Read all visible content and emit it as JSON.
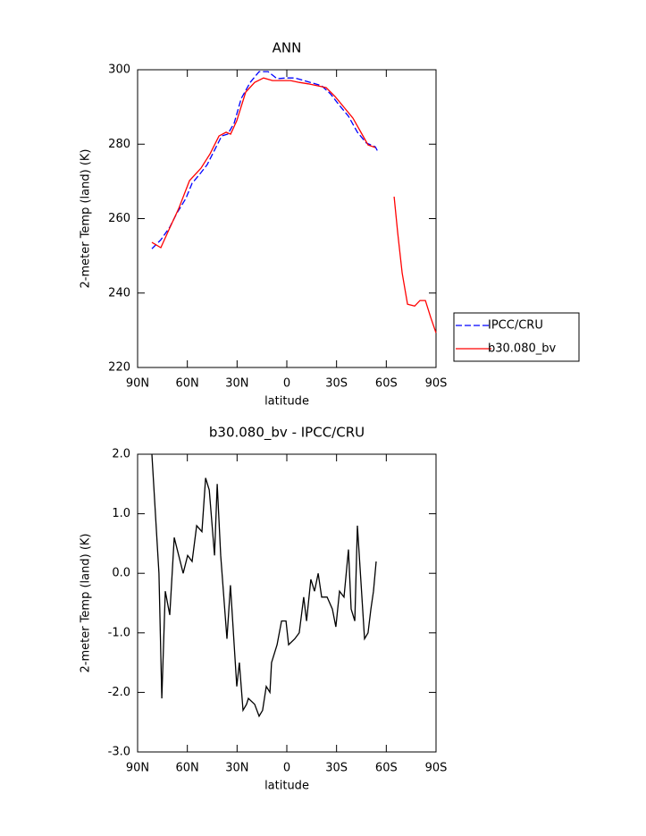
{
  "chart_data": [
    {
      "type": "line",
      "title": "ANN",
      "x_label": "latitude",
      "y_label": "2-meter Temp (land) (K)",
      "xlim": [
        90,
        -90
      ],
      "xticks": [
        {
          "value": 90,
          "label": "90N"
        },
        {
          "value": 60,
          "label": "60N"
        },
        {
          "value": 30,
          "label": "30N"
        },
        0,
        {
          "value": -30,
          "label": "30S"
        },
        {
          "value": -60,
          "label": "60S"
        },
        {
          "value": -90,
          "label": "90S"
        }
      ],
      "ylim": [
        220,
        300
      ],
      "yticks": [
        220,
        240,
        260,
        280,
        300
      ],
      "legend": "right",
      "series": [
        {
          "name": "IPCC/CRU",
          "color": "#0000ff",
          "line_style": "dashed",
          "x": [
            81.4,
            76.0,
            70.6,
            66.3,
            60.9,
            57.1,
            51.7,
            48.0,
            43.6,
            39.3,
            35.6,
            31.8,
            27.5,
            22.1,
            16.7,
            11.3,
            5.9,
            0.5,
            -4.9,
            -10.3,
            -15.7,
            -21.0,
            -26.4,
            -31.8,
            -37.2,
            -42.6,
            -48.0,
            -53.4,
            -55.0
          ],
          "values": [
            251.9,
            254.3,
            257.7,
            261.5,
            265.4,
            269.5,
            272.4,
            274.5,
            278.4,
            282.2,
            282.7,
            285.6,
            292.3,
            296.6,
            299.5,
            299.5,
            297.6,
            297.8,
            297.8,
            297.1,
            296.4,
            295.7,
            293.5,
            290.4,
            287.5,
            283.2,
            280.3,
            279.3,
            277.9
          ]
        },
        {
          "name": "b30.080_bv",
          "color": "#ff0000",
          "line_style": "solid",
          "x": [
            81.4,
            76.0,
            70.6,
            65.2,
            58.7,
            51.7,
            46.3,
            40.9,
            36.6,
            33.9,
            30.2,
            24.8,
            19.4,
            14.0,
            8.6,
            3.2,
            -2.2,
            -7.6,
            -13.0,
            -18.4,
            -23.7,
            -29.1,
            -34.5,
            -39.9,
            -45.3,
            -49.0,
            -53.4,
            null,
            -64.7,
            -66.9,
            -69.6,
            -72.8,
            -77.1,
            -80.3,
            -83.6,
            -86.8,
            -90.0
          ],
          "values": [
            253.6,
            252.2,
            257.5,
            262.7,
            270.2,
            273.6,
            277.4,
            282.2,
            283.2,
            282.7,
            286.3,
            294.0,
            296.6,
            297.8,
            297.1,
            297.1,
            297.1,
            296.6,
            296.2,
            295.7,
            295.2,
            292.8,
            289.9,
            287.0,
            282.7,
            279.8,
            279.1,
            null,
            265.9,
            256.2,
            245.4,
            237.0,
            236.5,
            238.0,
            238.0,
            233.4,
            229.3
          ]
        }
      ]
    },
    {
      "type": "line",
      "title": "b30.080_bv - IPCC/CRU",
      "x_label": "latitude",
      "y_label": "2-meter Temp (land) (K)",
      "xlim": [
        90,
        -90
      ],
      "xticks": [
        {
          "value": 90,
          "label": "90N"
        },
        {
          "value": 60,
          "label": "60N"
        },
        {
          "value": 30,
          "label": "30N"
        },
        0,
        {
          "value": -30,
          "label": "30S"
        },
        {
          "value": -60,
          "label": "60S"
        },
        {
          "value": -90,
          "label": "90S"
        }
      ],
      "ylim": [
        -3,
        2
      ],
      "yticks": [
        {
          "value": -3,
          "label": "-3.0"
        },
        {
          "value": -2,
          "label": "-2.0"
        },
        {
          "value": -1,
          "label": "-1.0"
        },
        {
          "value": 0,
          "label": "0.0"
        },
        {
          "value": 1,
          "label": "1.0"
        },
        {
          "value": 2,
          "label": "2.0"
        }
      ],
      "series": [
        {
          "color": "#000000",
          "line_style": "solid",
          "x": [
            81.4,
            77.1,
            75.4,
            73.3,
            70.6,
            67.9,
            62.5,
            59.8,
            57.1,
            54.4,
            51.2,
            49.0,
            46.8,
            43.6,
            42.0,
            39.9,
            36.1,
            34.0,
            30.2,
            28.6,
            26.4,
            24.3,
            23.2,
            19.4,
            16.7,
            14.6,
            12.4,
            10.2,
            9.2,
            5.9,
            3.2,
            0.5,
            -1.1,
            -4.8,
            -7.5,
            -10.2,
            -11.9,
            -14.5,
            -16.7,
            -18.9,
            -21.0,
            -24.3,
            -27.5,
            -29.6,
            -31.8,
            -34.5,
            -37.2,
            -38.8,
            -41.0,
            -42.6,
            -46.9,
            -49.0,
            -50.7,
            -52.3,
            -53.9
          ],
          "values": [
            2.0,
            0.0,
            -2.1,
            -0.3,
            -0.7,
            0.6,
            0.0,
            0.3,
            0.2,
            0.8,
            0.7,
            1.6,
            1.4,
            0.3,
            1.5,
            0.3,
            -1.1,
            -0.2,
            -1.9,
            -1.5,
            -2.3,
            -2.2,
            -2.1,
            -2.2,
            -2.4,
            -2.3,
            -1.9,
            -2.0,
            -1.5,
            -1.2,
            -0.8,
            -0.8,
            -1.2,
            -1.1,
            -1.0,
            -0.4,
            -0.8,
            -0.1,
            -0.3,
            0.0,
            -0.4,
            -0.4,
            -0.6,
            -0.9,
            -0.3,
            -0.4,
            0.4,
            -0.6,
            -0.8,
            0.8,
            -1.1,
            -1.0,
            -0.6,
            -0.3,
            0.2
          ]
        }
      ]
    }
  ]
}
